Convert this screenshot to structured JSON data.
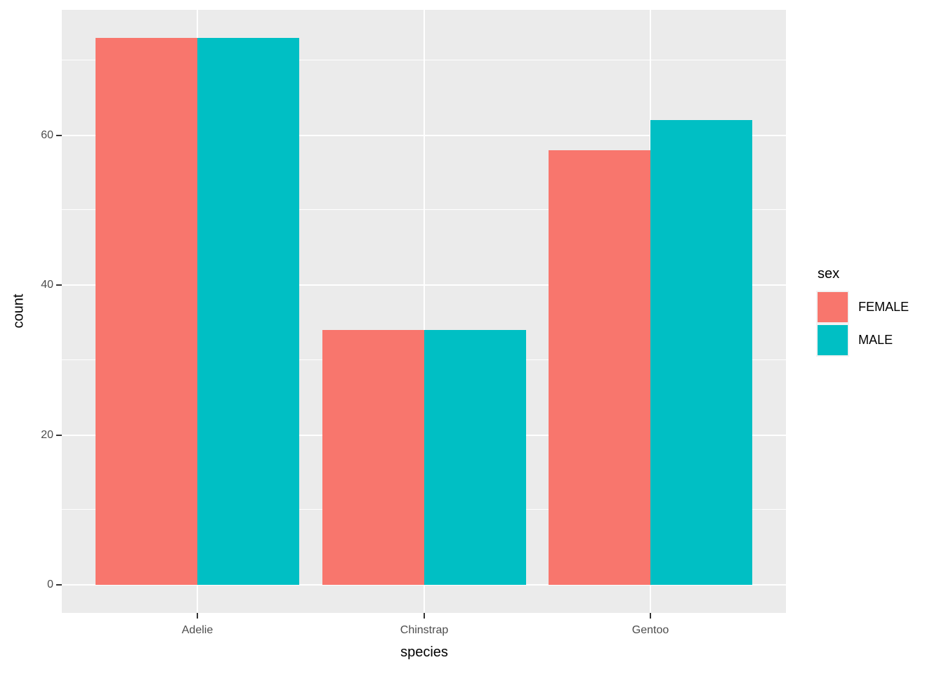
{
  "chart_data": {
    "type": "bar",
    "grouping": "dodged",
    "title": "",
    "xlabel": "species",
    "ylabel": "count",
    "categories": [
      "Adelie",
      "Chinstrap",
      "Gentoo"
    ],
    "series": [
      {
        "name": "FEMALE",
        "color": "#F8766D",
        "values": [
          73,
          34,
          58
        ]
      },
      {
        "name": "MALE",
        "color": "#00BFC4",
        "values": [
          73,
          34,
          62
        ]
      }
    ],
    "y_ticks": [
      0,
      20,
      40,
      60
    ],
    "y_minor_ticks": [
      10,
      30,
      50,
      70
    ],
    "ylim": [
      -3.8,
      76.7
    ],
    "grid": "on",
    "legend": {
      "title": "sex",
      "position": "right"
    },
    "colors": {
      "panel_background": "#EBEBEB",
      "gridline": "#FFFFFF",
      "tick_label": "#4D4D4D",
      "tick_mark": "#333333",
      "axis_title": "#000000"
    }
  }
}
